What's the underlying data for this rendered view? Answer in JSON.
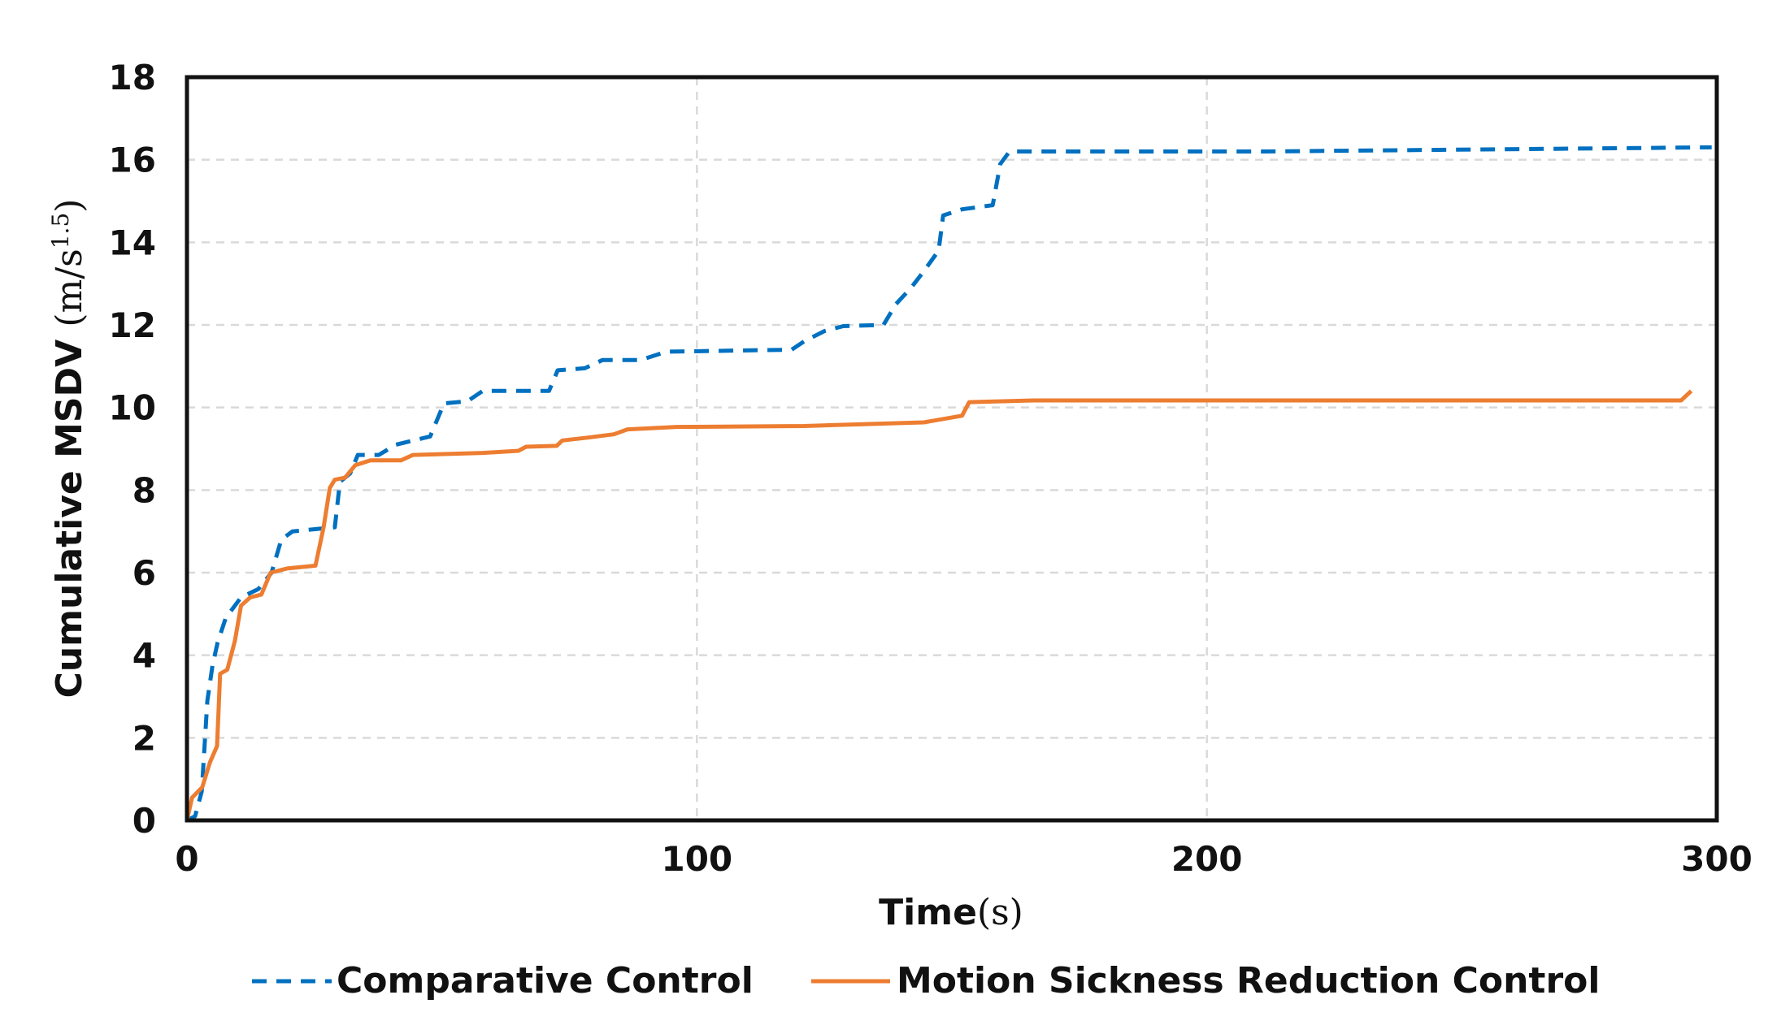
{
  "chart_data": {
    "type": "line",
    "title": "",
    "xlabel": {
      "text": "Time",
      "unit": "(s)"
    },
    "ylabel": {
      "text": "Cumulative MSDV ",
      "unit_open": "(m/s",
      "unit_sup": "1.5",
      "unit_close": ")"
    },
    "xlim": [
      0,
      300
    ],
    "ylim": [
      0,
      18
    ],
    "xticks": [
      0,
      100,
      200,
      300
    ],
    "yticks": [
      0,
      2,
      4,
      6,
      8,
      10,
      12,
      14,
      16,
      18
    ],
    "grid": true,
    "legend_position": "bottom",
    "series": [
      {
        "name": "Comparative Control",
        "color": "#0070C0",
        "style": "dashed",
        "x": [
          0,
          1.6,
          2.9,
          4,
          5,
          6,
          7.6,
          10.6,
          14,
          16.6,
          18.5,
          20.7,
          29,
          30,
          32,
          33.5,
          37.6,
          41,
          47.7,
          50.4,
          55,
          58,
          71,
          72.7,
          78,
          81.5,
          89,
          94,
          118.6,
          121,
          125,
          128.7,
          136.6,
          139,
          142,
          144.5,
          147.4,
          148.3,
          152,
          158,
          159.5,
          161.3,
          210.8,
          299
        ],
        "y": [
          0,
          0.1,
          0.7,
          2.9,
          3.75,
          4.3,
          4.9,
          5.4,
          5.6,
          6,
          6.8,
          7.0,
          7.1,
          8.2,
          8.4,
          8.85,
          8.85,
          9.1,
          9.3,
          10.1,
          10.15,
          10.4,
          10.4,
          10.9,
          10.95,
          11.15,
          11.15,
          11.35,
          11.4,
          11.6,
          11.85,
          11.97,
          12.0,
          12.5,
          12.9,
          13.3,
          13.8,
          14.65,
          14.8,
          14.9,
          15.9,
          16.2,
          16.2,
          16.3
        ]
      },
      {
        "name": "Motion Sickness Reduction Control",
        "color": "#ED7D31",
        "style": "solid",
        "x": [
          0,
          1,
          3,
          4.5,
          5.9,
          6.5,
          7.9,
          9.4,
          10.6,
          12.4,
          14.6,
          16.4,
          19.6,
          25.2,
          26.8,
          28,
          29,
          31,
          33,
          36,
          42,
          44.3,
          58,
          65,
          66.5,
          72.5,
          73.6,
          78.5,
          83.7,
          86.4,
          96,
          121,
          144.5,
          152,
          153.4,
          166,
          293,
          295
        ],
        "y": [
          0,
          0.55,
          0.8,
          1.4,
          1.8,
          3.55,
          3.65,
          4.35,
          5.2,
          5.4,
          5.47,
          6,
          6.1,
          6.17,
          7.1,
          8.05,
          8.25,
          8.3,
          8.6,
          8.72,
          8.72,
          8.85,
          8.9,
          8.95,
          9.05,
          9.07,
          9.2,
          9.27,
          9.35,
          9.47,
          9.53,
          9.55,
          9.64,
          9.8,
          10.13,
          10.17,
          10.17,
          10.4
        ]
      }
    ]
  }
}
